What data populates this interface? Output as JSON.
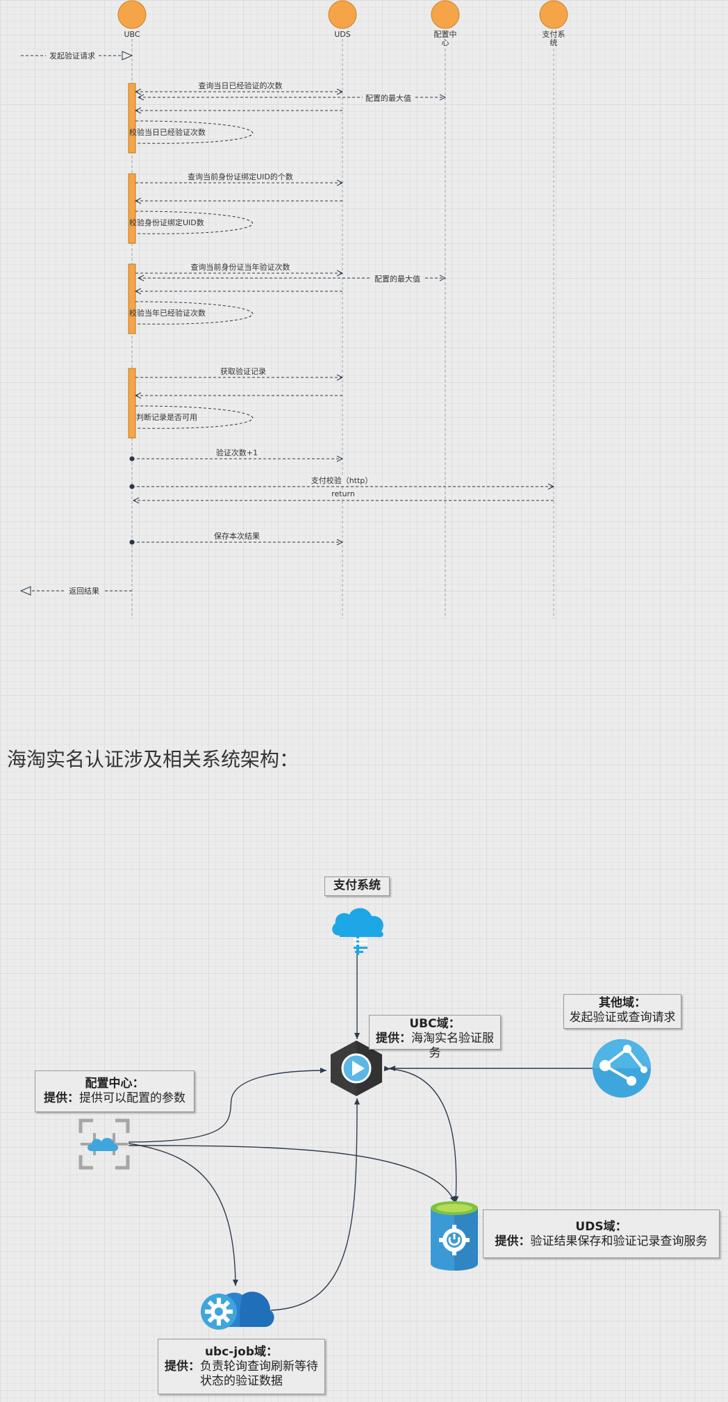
{
  "sequence": {
    "actors": [
      "UBC",
      "UDS",
      "配置中心",
      "支付系统"
    ],
    "start_message": "发起验证请求",
    "messages": [
      "查询当日已经验证的次数",
      "配置的最大值",
      "校验当日已经验证次数",
      "查询当前身份证绑定UID的个数",
      "校验身份证绑定UID数",
      "查询当前身份证当年验证次数",
      "配置的最大值",
      "校验当年已经验证次数",
      "获取验证记录",
      "判断记录是否可用",
      "验证次数+1",
      "支付校验（http）",
      "return",
      "保存本次结果"
    ],
    "end_message": "返回结果"
  },
  "section_title": "海淘实名认证涉及相关系统架构：",
  "architecture": {
    "provide_label": "提供：",
    "nodes": {
      "pay": {
        "name": "支付系统",
        "icon": "cloud-upload-icon",
        "color": "#1ea7e6"
      },
      "ubc": {
        "name": "UBC域：",
        "desc": "海淘实名验证服务",
        "icon": "play-hexagon-icon"
      },
      "other": {
        "name": "其他域：",
        "desc": "发起验证或查询请求",
        "icon": "network-globe-icon"
      },
      "config": {
        "name": "配置中心：",
        "desc": "提供可以配置的参数",
        "icon": "cloud-frame-icon"
      },
      "uds": {
        "name": "UDS域：",
        "desc": "验证结果保存和验证记录查询服务",
        "icon": "database-gear-icon"
      },
      "job": {
        "name": "ubc-job域：",
        "desc_line1": "负责轮询查询刷新等待",
        "desc_line2": "状态的验证数据",
        "icon": "cloud-gear-icon"
      }
    }
  },
  "colors": {
    "actor": "#f5a447",
    "activation": "#f5a447",
    "connector": "#2d3b4d",
    "azure_blue": "#1e88d2"
  }
}
